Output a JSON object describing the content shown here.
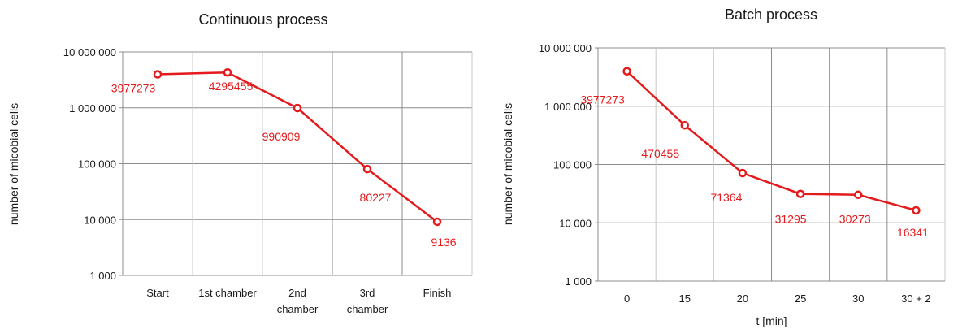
{
  "chart_data": [
    {
      "type": "line",
      "title": "Continuous process",
      "ylabel": "number of  micobial cells",
      "xlabel": "",
      "yscale": "log",
      "ylim": [
        1000,
        10000000
      ],
      "yticks": [
        "1 000",
        "10 000",
        "100 000",
        "1 000 000",
        "10 000 000"
      ],
      "categories": [
        [
          "Start"
        ],
        [
          "1st chamber"
        ],
        [
          "2nd",
          "chamber"
        ],
        [
          "3rd",
          "chamber"
        ],
        [
          "Finish"
        ]
      ],
      "values": [
        3977273,
        4295455,
        990909,
        80227,
        9136
      ],
      "data_labels": [
        "3977273",
        "4295455",
        "990909",
        "80227",
        "9136"
      ],
      "line_color": "#e41a1c",
      "grid": true
    },
    {
      "type": "line",
      "title": "Batch process",
      "ylabel": "number of  micobial cells",
      "xlabel": "t [min]",
      "yscale": "log",
      "ylim": [
        1000,
        10000000
      ],
      "yticks": [
        "1 000",
        "10 000",
        "100 000",
        "1 000 000",
        "10 000 000"
      ],
      "categories": [
        [
          "0"
        ],
        [
          "15"
        ],
        [
          "20"
        ],
        [
          "25"
        ],
        [
          "30"
        ],
        [
          "30 + 2"
        ]
      ],
      "values": [
        3977273,
        470455,
        71364,
        31295,
        30273,
        16341
      ],
      "data_labels": [
        "3977273",
        "470455",
        "71364",
        "31295",
        "30273",
        "16341"
      ],
      "line_color": "#e41a1c",
      "grid": true
    }
  ]
}
